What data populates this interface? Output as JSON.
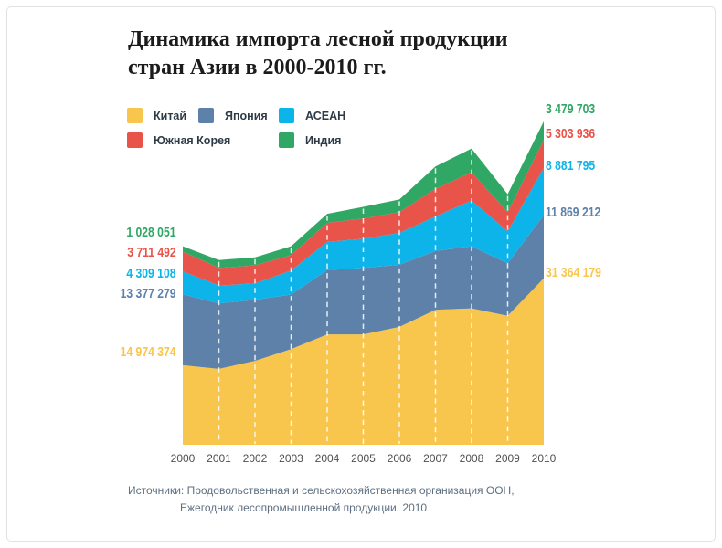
{
  "title": {
    "line1": "Динамика импорта лесной продукции",
    "line2": "стран Азии в 2000-2010 гг."
  },
  "source": {
    "line1": "Источники: Продовольственная и сельскохозяйственная организация ООН,",
    "line2": "Ежегодник лесопромышленной продукции, 2010"
  },
  "colors": {
    "china_yellow": "#F8C64D",
    "japan_blue": "#5E81A9",
    "asean_cyan": "#0DB4EA",
    "korea_red": "#E8534A",
    "india_green": "#31A765",
    "grid_dash": "rgba(255,255,255,0.85)"
  },
  "chart_data": {
    "type": "area",
    "stacked": true,
    "title": "Динамика импорта лесной продукции стран Азии в 2000-2010 гг.",
    "categories": [
      2000,
      2001,
      2002,
      2003,
      2004,
      2005,
      2006,
      2007,
      2008,
      2009,
      2010
    ],
    "xlabel": "",
    "ylabel": "",
    "ylim": [
      0,
      61000000
    ],
    "grid": "vertical-white-dashed-lines-per-year",
    "legend_position": "top-left",
    "series": [
      {
        "name": "Китай",
        "color": "#F8C64D",
        "values": [
          14974374,
          14300000,
          15800000,
          18000000,
          20800000,
          20800000,
          22200000,
          25400000,
          25700000,
          24300000,
          31364179
        ],
        "first_label": "14 974 374",
        "last_label": "31 364 179"
      },
      {
        "name": "Япония",
        "color": "#5E81A9",
        "values": [
          13377279,
          12300000,
          11500000,
          10300000,
          12100000,
          12500000,
          11700000,
          11100000,
          11700000,
          9900000,
          11869212
        ],
        "first_label": "13 377 279",
        "last_label": "11 869 212"
      },
      {
        "name": "АСЕАН",
        "color": "#0DB4EA",
        "values": [
          4309108,
          3400000,
          3100000,
          4500000,
          5300000,
          5500000,
          6000000,
          6500000,
          8600000,
          6000000,
          8881795
        ],
        "first_label": "4 309 108",
        "last_label": "8 881 795"
      },
      {
        "name": "Южная Корея",
        "color": "#E8534A",
        "values": [
          3711492,
          3300000,
          3400000,
          2900000,
          3600000,
          3800000,
          3900000,
          5200000,
          5300000,
          3600000,
          5303936
        ],
        "first_label": "3 711 492",
        "last_label": "5 303 936"
      },
      {
        "name": "Индия",
        "color": "#31A765",
        "values": [
          1028051,
          1500000,
          1500000,
          1700000,
          1700000,
          2200000,
          2400000,
          4200000,
          4500000,
          3400000,
          3479703
        ],
        "first_label": "1 028 051",
        "last_label": "3 479 703"
      }
    ]
  }
}
